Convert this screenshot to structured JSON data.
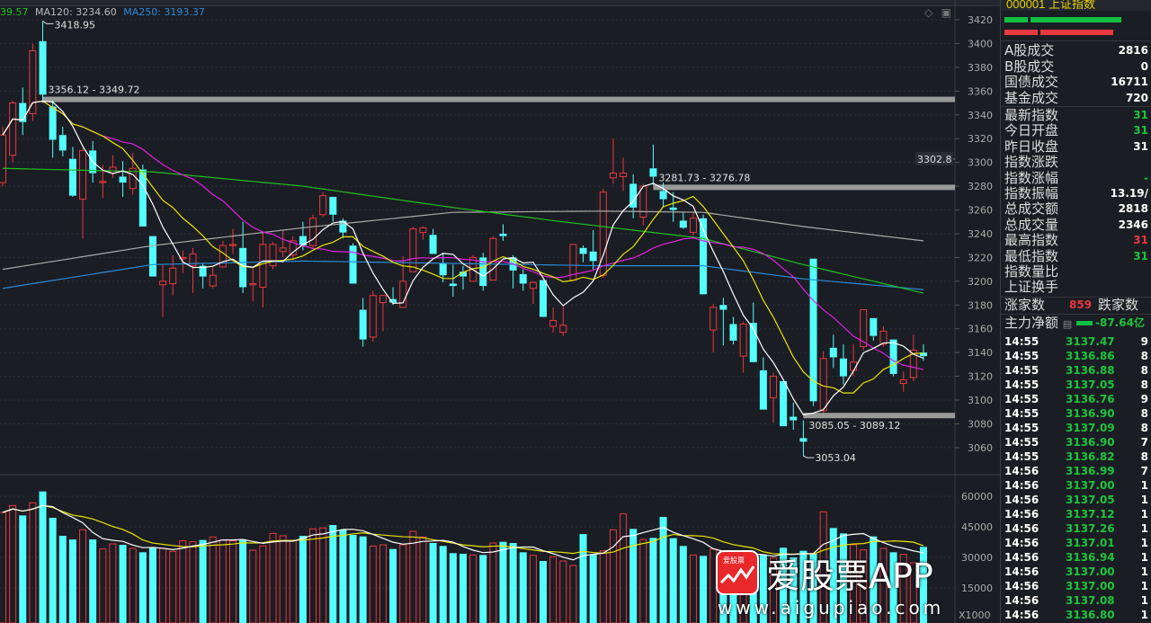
{
  "ma_legend": {
    "ma60": "39.57",
    "ma120": "MA120: 3234.60",
    "ma250": "MA250: 3193.37"
  },
  "colors": {
    "up": "#e8383d",
    "down": "#54ffff",
    "ma5": "#ffffff",
    "ma10": "#e6e600",
    "ma20": "#e020e0",
    "ma60": "#20c020",
    "ma120": "#aaaaaa",
    "ma250": "#2a8ad6"
  },
  "panel": {
    "header": "000001 上证指数",
    "stats_group1": [
      {
        "label": "A股成交",
        "value": "2816",
        "color": "#ffffff"
      },
      {
        "label": "B股成交",
        "value": "0",
        "color": "#ffffff"
      },
      {
        "label": "国债成交",
        "value": "16711",
        "color": "#ffffff"
      },
      {
        "label": "基金成交",
        "value": "720",
        "color": "#ffffff"
      }
    ],
    "stats_group2": [
      {
        "label": "最新指数",
        "value": "31",
        "color": "#1ec43c"
      },
      {
        "label": "今日开盘",
        "value": "31",
        "color": "#1ec43c"
      },
      {
        "label": "昨日收盘",
        "value": "31",
        "color": "#ffffff"
      },
      {
        "label": "指数涨跌",
        "value": "",
        "color": "#1ec43c"
      },
      {
        "label": "指数涨幅",
        "value": "-",
        "color": "#1ec43c"
      },
      {
        "label": "指数振幅",
        "value": "13.19/",
        "color": "#ffffff"
      },
      {
        "label": "总成交额",
        "value": "2818",
        "color": "#ffffff"
      },
      {
        "label": "总成交量",
        "value": "2346",
        "color": "#ffffff"
      },
      {
        "label": "最高指数",
        "value": "31",
        "color": "#e8383d"
      },
      {
        "label": "最低指数",
        "value": "31",
        "color": "#1ec43c"
      },
      {
        "label": "指数量比",
        "value": "",
        "color": "#ffffff"
      },
      {
        "label": "上证换手",
        "value": "",
        "color": "#ffffff"
      }
    ],
    "advance_label": "涨家数",
    "advance_value": "859",
    "decline_label": "跌家数",
    "main_net_label": "主力净额",
    "main_net_value": "-87.64亿",
    "ticks": [
      {
        "time": "14:55",
        "price": "3137.47",
        "vol": "9"
      },
      {
        "time": "14:55",
        "price": "3136.86",
        "vol": "8"
      },
      {
        "time": "14:55",
        "price": "3136.88",
        "vol": "8"
      },
      {
        "time": "14:55",
        "price": "3137.05",
        "vol": "8"
      },
      {
        "time": "14:55",
        "price": "3136.76",
        "vol": "9"
      },
      {
        "time": "14:55",
        "price": "3136.90",
        "vol": "8"
      },
      {
        "time": "14:55",
        "price": "3137.09",
        "vol": "8"
      },
      {
        "time": "14:55",
        "price": "3136.90",
        "vol": "7"
      },
      {
        "time": "14:55",
        "price": "3136.82",
        "vol": "8"
      },
      {
        "time": "14:56",
        "price": "3136.99",
        "vol": "7"
      },
      {
        "time": "14:56",
        "price": "3137.00",
        "vol": "1"
      },
      {
        "time": "14:56",
        "price": "3137.05",
        "vol": "1"
      },
      {
        "time": "14:56",
        "price": "3137.12",
        "vol": "1"
      },
      {
        "time": "14:56",
        "price": "3137.26",
        "vol": "1"
      },
      {
        "time": "14:56",
        "price": "3137.01",
        "vol": "1"
      },
      {
        "time": "14:56",
        "price": "3136.94",
        "vol": "1"
      },
      {
        "time": "14:56",
        "price": "3137.00",
        "vol": "1"
      },
      {
        "time": "14:56",
        "price": "3137.00",
        "vol": "1"
      },
      {
        "time": "14:56",
        "price": "3137.08",
        "vol": "1"
      },
      {
        "time": "14:56",
        "price": "3136.80",
        "vol": "1"
      }
    ]
  },
  "watermark": {
    "brand": "爱股票APP",
    "url": "www.aigupiao.com",
    "logo_text": "爱股票"
  },
  "chart_data": {
    "type": "candlestick",
    "price_axis": {
      "ticks": [
        3420,
        3400,
        3380,
        3360,
        3340,
        3320,
        3300,
        3280,
        3260,
        3240,
        3220,
        3200,
        3180,
        3160,
        3140,
        3120,
        3100,
        3080,
        3060
      ],
      "range": [
        3050,
        3423
      ]
    },
    "crosshair_price": "3302.8",
    "volume_axis": {
      "ticks": [
        60000,
        45000,
        30000,
        15000
      ],
      "unit_label": "X1000"
    },
    "ohlc": [
      [
        3283,
        3330,
        3280,
        3323
      ],
      [
        3306,
        3352,
        3300,
        3350
      ],
      [
        3350,
        3363,
        3323,
        3334
      ],
      [
        3341,
        3400,
        3335,
        3394
      ],
      [
        3402,
        3419,
        3350,
        3357
      ],
      [
        3347,
        3352,
        3304,
        3319
      ],
      [
        3323,
        3330,
        3305,
        3310
      ],
      [
        3303,
        3313,
        3271,
        3272
      ],
      [
        3269,
        3312,
        3236,
        3310
      ],
      [
        3310,
        3318,
        3283,
        3291
      ],
      [
        3283,
        3298,
        3270,
        3284
      ],
      [
        3291,
        3306,
        3287,
        3296
      ],
      [
        3288,
        3301,
        3271,
        3283
      ],
      [
        3278,
        3308,
        3273,
        3295
      ],
      [
        3294,
        3298,
        3246,
        3246
      ],
      [
        3238,
        3238,
        3204,
        3204
      ],
      [
        3197,
        3214,
        3170,
        3200
      ],
      [
        3198,
        3222,
        3188,
        3211
      ],
      [
        3219,
        3226,
        3207,
        3220
      ],
      [
        3213,
        3228,
        3190,
        3223
      ],
      [
        3213,
        3215,
        3194,
        3204
      ],
      [
        3196,
        3213,
        3194,
        3205
      ],
      [
        3212,
        3234,
        3212,
        3230
      ],
      [
        3230,
        3244,
        3223,
        3231
      ],
      [
        3228,
        3250,
        3190,
        3195
      ],
      [
        3197,
        3212,
        3183,
        3198
      ],
      [
        3195,
        3241,
        3178,
        3231
      ],
      [
        3213,
        3233,
        3210,
        3231
      ],
      [
        3225,
        3243,
        3220,
        3228
      ],
      [
        3222,
        3238,
        3218,
        3234
      ],
      [
        3238,
        3250,
        3226,
        3230
      ],
      [
        3230,
        3256,
        3228,
        3253
      ],
      [
        3256,
        3275,
        3254,
        3272
      ],
      [
        3271,
        3271,
        3250,
        3256
      ],
      [
        3251,
        3253,
        3236,
        3241
      ],
      [
        3230,
        3232,
        3198,
        3198
      ],
      [
        3176,
        3186,
        3145,
        3151
      ],
      [
        3153,
        3192,
        3149,
        3188
      ],
      [
        3182,
        3188,
        3158,
        3188
      ],
      [
        3185,
        3195,
        3180,
        3182
      ],
      [
        3178,
        3221,
        3178,
        3200
      ],
      [
        3208,
        3246,
        3208,
        3244
      ],
      [
        3241,
        3246,
        3235,
        3245
      ],
      [
        3239,
        3244,
        3223,
        3223
      ],
      [
        3215,
        3224,
        3199,
        3205
      ],
      [
        3198,
        3214,
        3187,
        3196
      ],
      [
        3208,
        3213,
        3193,
        3204
      ],
      [
        3200,
        3222,
        3200,
        3220
      ],
      [
        3220,
        3224,
        3192,
        3196
      ],
      [
        3201,
        3238,
        3201,
        3236
      ],
      [
        3240,
        3248,
        3234,
        3238
      ],
      [
        3220,
        3222,
        3194,
        3209
      ],
      [
        3206,
        3210,
        3192,
        3198
      ],
      [
        3194,
        3200,
        3181,
        3199
      ],
      [
        3201,
        3201,
        3170,
        3170
      ],
      [
        3162,
        3178,
        3157,
        3167
      ],
      [
        3157,
        3179,
        3154,
        3163
      ],
      [
        3201,
        3231,
        3201,
        3231
      ],
      [
        3228,
        3230,
        3216,
        3223
      ],
      [
        3225,
        3243,
        3210,
        3217
      ],
      [
        3205,
        3278,
        3203,
        3275
      ],
      [
        3287,
        3320,
        3282,
        3291
      ],
      [
        3288,
        3304,
        3276,
        3291
      ],
      [
        3282,
        3290,
        3253,
        3262
      ],
      [
        3254,
        3282,
        3247,
        3280
      ],
      [
        3295,
        3315,
        3281,
        3288
      ],
      [
        3276,
        3283,
        3262,
        3269
      ],
      [
        3262,
        3275,
        3250,
        3260
      ],
      [
        3251,
        3258,
        3244,
        3245
      ],
      [
        3241,
        3258,
        3238,
        3253
      ],
      [
        3253,
        3256,
        3189,
        3189
      ],
      [
        3159,
        3181,
        3140,
        3178
      ],
      [
        3180,
        3186,
        3146,
        3176
      ],
      [
        3164,
        3170,
        3147,
        3150
      ],
      [
        3137,
        3166,
        3123,
        3164
      ],
      [
        3165,
        3182,
        3132,
        3132
      ],
      [
        3125,
        3136,
        3092,
        3092
      ],
      [
        3102,
        3123,
        3081,
        3120
      ],
      [
        3116,
        3116,
        3078,
        3078
      ],
      [
        3086,
        3098,
        3075,
        3083
      ],
      [
        3068,
        3083,
        3053,
        3065
      ],
      [
        3219,
        3219,
        3095,
        3099
      ],
      [
        3091,
        3141,
        3089,
        3135
      ],
      [
        3144,
        3155,
        3127,
        3136
      ],
      [
        3135,
        3147,
        3113,
        3120
      ],
      [
        3125,
        3147,
        3120,
        3132
      ],
      [
        3145,
        3176,
        3142,
        3176
      ],
      [
        3169,
        3169,
        3150,
        3154
      ],
      [
        3147,
        3162,
        3145,
        3158
      ],
      [
        3151,
        3151,
        3120,
        3122
      ],
      [
        3114,
        3124,
        3107,
        3117
      ],
      [
        3119,
        3155,
        3116,
        3142
      ],
      [
        3140,
        3147,
        3133,
        3137
      ]
    ],
    "volume": [
      52060,
      55440,
      50590,
      56770,
      62350,
      49420,
      40600,
      38830,
      43540,
      38830,
      34130,
      36630,
      36190,
      34420,
      32510,
      34720,
      34420,
      32950,
      38100,
      37660,
      38540,
      40010,
      38540,
      38100,
      38830,
      33540,
      35600,
      41770,
      40600,
      38100,
      40600,
      43980,
      44420,
      45890,
      43540,
      41040,
      40300,
      35600,
      36190,
      34130,
      36190,
      42800,
      40010,
      37070,
      35600,
      32070,
      31780,
      31190,
      31190,
      37070,
      37660,
      37070,
      32510,
      31040,
      28250,
      30310,
      28250,
      26040,
      41480,
      31480,
      33250,
      43540,
      51330,
      43980,
      38830,
      39570,
      49860,
      39420,
      35600,
      31190,
      30750,
      34130,
      33250,
      30010,
      30310,
      31480,
      31480,
      29720,
      34720,
      30010,
      33250,
      31780,
      52360,
      44420,
      41770,
      36190,
      33690,
      40300,
      34420,
      32510,
      31480,
      27370,
      35160
    ],
    "ma60": [
      [
        0,
        3295
      ],
      [
        15,
        3292
      ],
      [
        30,
        3280
      ],
      [
        45,
        3262
      ],
      [
        55,
        3251
      ],
      [
        70,
        3236
      ],
      [
        80,
        3214
      ],
      [
        92,
        3190
      ]
    ],
    "ma120": [
      [
        0,
        3210
      ],
      [
        15,
        3230
      ],
      [
        30,
        3245
      ],
      [
        45,
        3258
      ],
      [
        60,
        3259
      ],
      [
        70,
        3258
      ],
      [
        80,
        3246
      ],
      [
        92,
        3234
      ]
    ],
    "ma250": [
      [
        0,
        3194
      ],
      [
        15,
        3214
      ],
      [
        30,
        3217
      ],
      [
        45,
        3215
      ],
      [
        60,
        3213
      ],
      [
        70,
        3213
      ],
      [
        80,
        3202
      ],
      [
        92,
        3193
      ]
    ],
    "annotations": [
      {
        "index": 4,
        "price": 3418.95,
        "text": "3418.95",
        "kind": "high"
      },
      {
        "index": 80,
        "price": 3053.04,
        "text": "3053.04",
        "kind": "low"
      },
      {
        "index": 4,
        "price": 3353,
        "text": "3356.12 - 3349.72",
        "kind": "band"
      },
      {
        "index": 65,
        "price": 3279,
        "text": "3281.73 - 3276.78",
        "kind": "band"
      },
      {
        "index": 80,
        "price": 3087,
        "text": "3085.05 - 3089.12",
        "kind": "band"
      }
    ]
  }
}
